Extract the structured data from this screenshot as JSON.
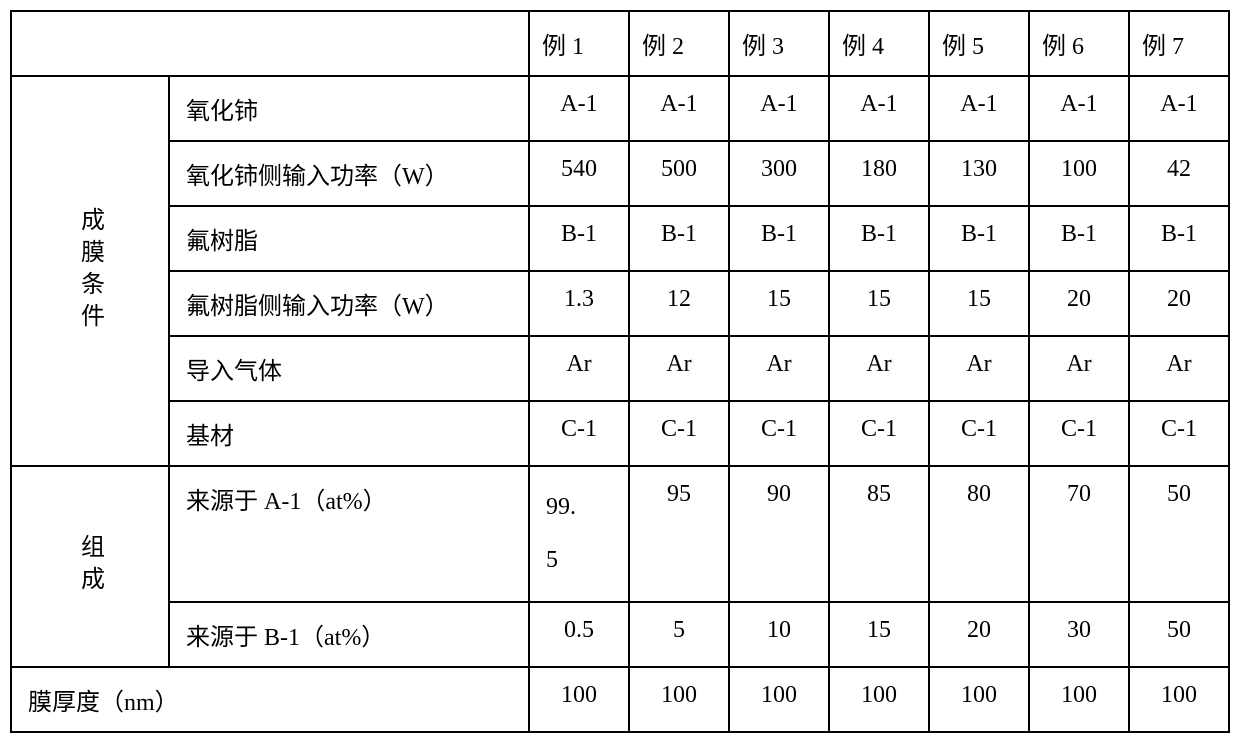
{
  "table": {
    "columnHeaders": [
      "例 1",
      "例 2",
      "例 3",
      "例 4",
      "例 5",
      "例 6",
      "例 7"
    ],
    "sections": [
      {
        "label": "成膜条件",
        "rows": [
          {
            "label": "氧化铈",
            "values": [
              "A-1",
              "A-1",
              "A-1",
              "A-1",
              "A-1",
              "A-1",
              "A-1"
            ]
          },
          {
            "label": "氧化铈侧输入功率（W）",
            "values": [
              "540",
              "500",
              "300",
              "180",
              "130",
              "100",
              "42"
            ]
          },
          {
            "label": "氟树脂",
            "values": [
              "B-1",
              "B-1",
              "B-1",
              "B-1",
              "B-1",
              "B-1",
              "B-1"
            ]
          },
          {
            "label": "氟树脂侧输入功率（W）",
            "values": [
              "1.3",
              "12",
              "15",
              "15",
              "15",
              "20",
              "20"
            ]
          },
          {
            "label": "导入气体",
            "values": [
              "Ar",
              "Ar",
              "Ar",
              "Ar",
              "Ar",
              "Ar",
              "Ar"
            ]
          },
          {
            "label": "基材",
            "values": [
              "C-1",
              "C-1",
              "C-1",
              "C-1",
              "C-1",
              "C-1",
              "C-1"
            ]
          }
        ]
      },
      {
        "label": "组成",
        "rows": [
          {
            "label": "来源于 A-1（at%）",
            "values": [
              "99.5",
              "95",
              "90",
              "85",
              "80",
              "70",
              "50"
            ],
            "tall": true
          },
          {
            "label": "来源于 B-1（at%）",
            "values": [
              "0.5",
              "5",
              "10",
              "15",
              "20",
              "30",
              "50"
            ]
          }
        ]
      }
    ],
    "footerRow": {
      "label": "膜厚度（nm）",
      "values": [
        "100",
        "100",
        "100",
        "100",
        "100",
        "100",
        "100"
      ]
    }
  },
  "style": {
    "font_family": "SimSun",
    "font_size_pt": 18,
    "border_color": "#000000",
    "background_color": "#ffffff",
    "text_color": "#000000",
    "col_widths": {
      "label_col": 56,
      "row_label": 360,
      "data_col": 110
    }
  }
}
